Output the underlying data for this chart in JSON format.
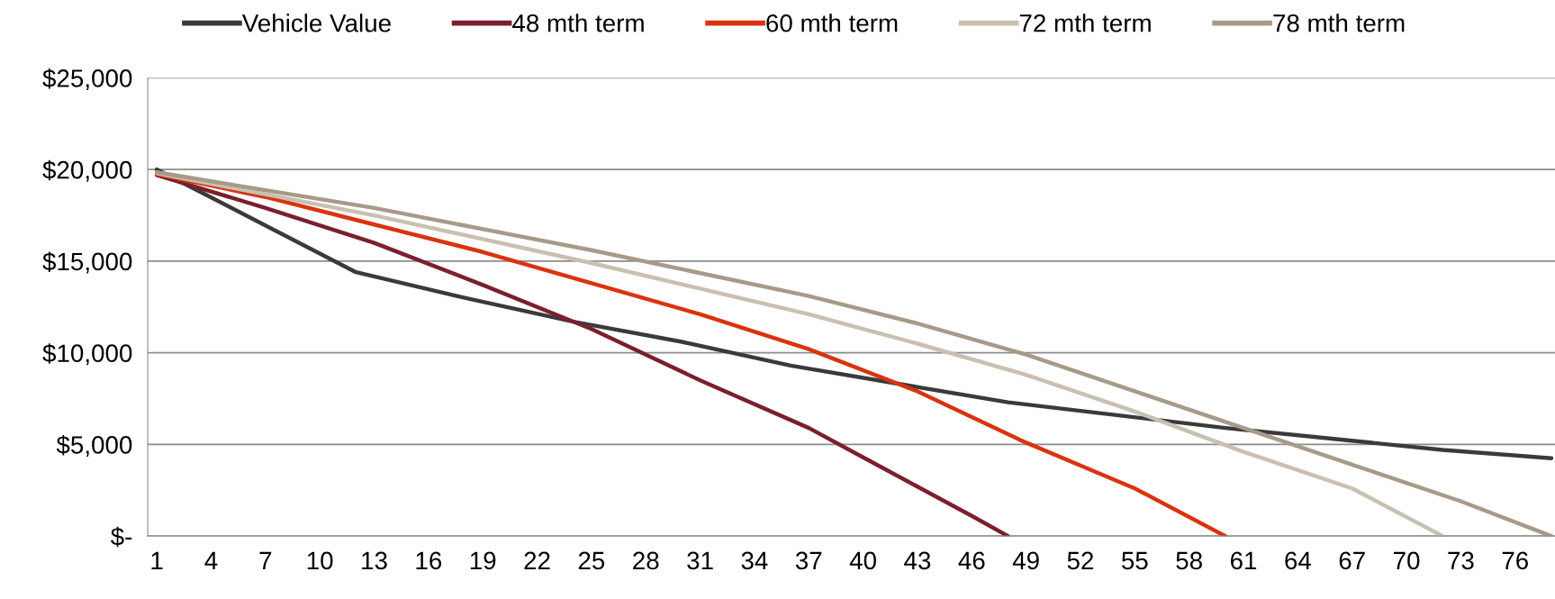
{
  "chart_data": {
    "type": "line",
    "xlim": [
      0.5,
      78.2
    ],
    "xticks": [
      1,
      4,
      7,
      10,
      13,
      16,
      19,
      22,
      25,
      28,
      31,
      34,
      37,
      40,
      43,
      46,
      49,
      52,
      55,
      58,
      61,
      64,
      67,
      70,
      73,
      76
    ],
    "ylim": [
      0,
      25000
    ],
    "yticks": [
      {
        "value": 0,
        "label": "$-"
      },
      {
        "value": 5000,
        "label": "$5,000"
      },
      {
        "value": 10000,
        "label": "$10,000"
      },
      {
        "value": 15000,
        "label": "$15,000"
      },
      {
        "value": 20000,
        "label": "$20,000"
      },
      {
        "value": 25000,
        "label": "$25,000"
      }
    ],
    "grid": "y",
    "legend": "top",
    "marker": "none",
    "line_style": "solid",
    "series": [
      {
        "name": "Vehicle Value",
        "color": "#3a3a3a",
        "x": [
          1,
          12,
          18,
          24,
          30,
          36,
          42,
          48,
          54,
          60,
          66,
          72,
          78
        ],
        "values": [
          20000,
          14400,
          13000,
          11700,
          10600,
          9300,
          8300,
          7300,
          6600,
          5900,
          5300,
          4700,
          4250
        ]
      },
      {
        "name": "48 mth term",
        "color": "#7b1f2e",
        "x": [
          1,
          7,
          13,
          19,
          25,
          31,
          37,
          40,
          43,
          46,
          48
        ],
        "values": [
          19700,
          17900,
          16000,
          13700,
          11300,
          8500,
          5900,
          4300,
          2700,
          1100,
          0
        ]
      },
      {
        "name": "60 mth term",
        "color": "#d9330f",
        "x": [
          1,
          7,
          13,
          19,
          25,
          31,
          37,
          43,
          49,
          55,
          60
        ],
        "values": [
          19750,
          18500,
          17000,
          15500,
          13800,
          12100,
          10200,
          7900,
          5100,
          2600,
          0
        ]
      },
      {
        "name": "72 mth term",
        "color": "#c8c0b0",
        "x": [
          1,
          13,
          25,
          37,
          43,
          49,
          55,
          61,
          67,
          72
        ],
        "values": [
          19800,
          17500,
          14900,
          12100,
          10500,
          8800,
          6800,
          4600,
          2600,
          0
        ]
      },
      {
        "name": "78 mth term",
        "color": "#a89a88",
        "x": [
          1,
          13,
          25,
          37,
          43,
          49,
          55,
          61,
          67,
          73,
          78
        ],
        "values": [
          19850,
          17900,
          15600,
          13100,
          11600,
          9900,
          7900,
          5900,
          3900,
          1900,
          0
        ]
      }
    ]
  }
}
